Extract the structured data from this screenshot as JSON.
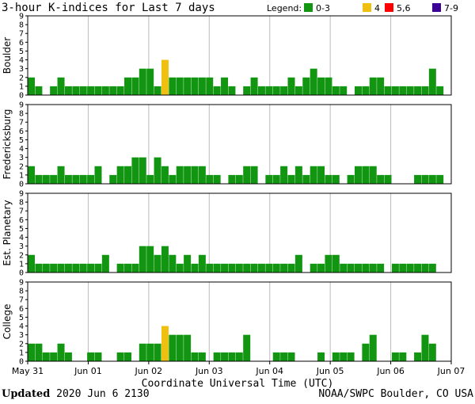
{
  "colors": {
    "green": "#129612",
    "yellow": "#f0c010",
    "red": "#ff0000",
    "purple": "#3c0096",
    "axis": "#000000",
    "grid": "#bbbbbb"
  },
  "chart_data": {
    "type": "bar",
    "title": "3-hour K-indices for Last 7 days",
    "legend": {
      "label": "Legend:",
      "position": "top-right",
      "items": [
        {
          "label": "0-3",
          "color": "green"
        },
        {
          "label": "4",
          "color": "yellow"
        },
        {
          "label": "5,6",
          "color": "red"
        },
        {
          "label": "7-9",
          "color": "purple"
        }
      ]
    },
    "xlabel": "Coordinate Universal Time (UTC)",
    "x_tick_labels": [
      "May 31",
      "Jun 01",
      "Jun 02",
      "Jun 03",
      "Jun 04",
      "Jun 05",
      "Jun 06",
      "Jun 07"
    ],
    "ylim": [
      0,
      9
    ],
    "y_ticks": [
      "0",
      "1",
      "2",
      "3",
      "4",
      "5",
      "6",
      "7",
      "8",
      "9"
    ],
    "panels": [
      {
        "name": "Boulder",
        "values": [
          2,
          1,
          0,
          1,
          2,
          1,
          1,
          1,
          1,
          1,
          1,
          1,
          1,
          2,
          2,
          3,
          3,
          1,
          4,
          2,
          2,
          2,
          2,
          2,
          2,
          1,
          2,
          1,
          0,
          1,
          2,
          1,
          1,
          1,
          1,
          2,
          1,
          2,
          3,
          2,
          2,
          1,
          1,
          0,
          1,
          1,
          2,
          2,
          1,
          1,
          1,
          1,
          1,
          1,
          3,
          1,
          0
        ]
      },
      {
        "name": "Fredericksburg",
        "values": [
          2,
          1,
          1,
          1,
          2,
          1,
          1,
          1,
          1,
          2,
          0,
          1,
          2,
          2,
          3,
          3,
          1,
          3,
          2,
          1,
          2,
          2,
          2,
          2,
          1,
          1,
          0,
          1,
          1,
          2,
          2,
          0,
          1,
          1,
          2,
          1,
          2,
          1,
          2,
          2,
          1,
          1,
          0,
          1,
          2,
          2,
          2,
          1,
          1,
          0,
          0,
          0,
          1,
          1,
          1,
          1,
          0
        ]
      },
      {
        "name": "Est. Planetary",
        "values": [
          2,
          1,
          1,
          1,
          1,
          1,
          1,
          1,
          1,
          1,
          2,
          0,
          1,
          1,
          1,
          3,
          3,
          2,
          3,
          2,
          1,
          2,
          1,
          2,
          1,
          1,
          1,
          1,
          1,
          1,
          1,
          1,
          1,
          1,
          1,
          1,
          2,
          0,
          1,
          1,
          2,
          2,
          1,
          1,
          1,
          1,
          1,
          1,
          0,
          1,
          1,
          1,
          1,
          1,
          1,
          0,
          0
        ]
      },
      {
        "name": "College",
        "values": [
          2,
          2,
          1,
          1,
          2,
          1,
          0,
          0,
          1,
          1,
          0,
          0,
          1,
          1,
          0,
          2,
          2,
          2,
          4,
          3,
          3,
          3,
          1,
          1,
          0,
          1,
          1,
          1,
          1,
          3,
          0,
          0,
          0,
          1,
          1,
          1,
          0,
          0,
          0,
          1,
          0,
          1,
          1,
          1,
          0,
          2,
          3,
          0,
          0,
          1,
          1,
          0,
          1,
          3,
          2,
          0,
          0
        ]
      }
    ]
  },
  "footer": {
    "updated_label": "Updated",
    "updated_value": "2020 Jun  6 2130",
    "source": "NOAA/SWPC Boulder, CO USA"
  }
}
